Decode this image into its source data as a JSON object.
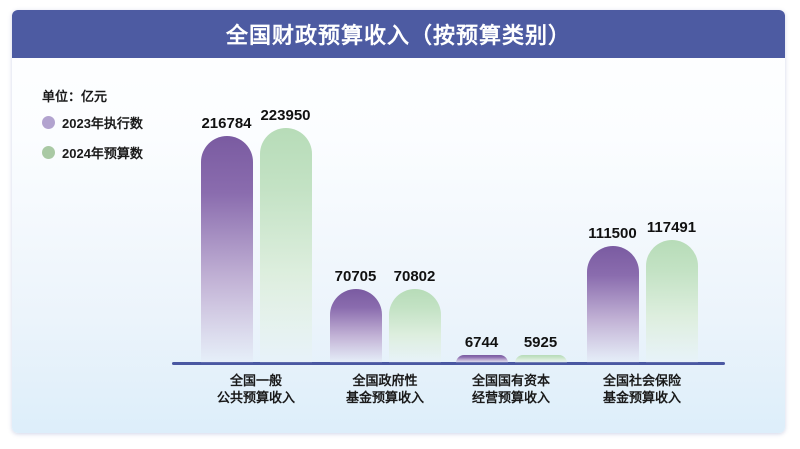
{
  "title": "全国财政预算收入（按预算类别）",
  "unit_label": "单位：亿元",
  "legend": [
    {
      "label": "2023年执行数",
      "color": "#b2a3cf"
    },
    {
      "label": "2024年预算数",
      "color": "#a9c9a4"
    }
  ],
  "colors": {
    "title_bar": "#4d5ba2",
    "axis_line": "#4a58a2",
    "bar_2023_top": "#7a5ba1",
    "bar_2024_top": "#b7dcb8",
    "card_bottom": "#ddeefa"
  },
  "chart_data": {
    "type": "bar",
    "title": "全国财政预算收入（按预算类别）",
    "unit": "亿元",
    "categories": [
      {
        "line1": "全国一般",
        "line2": "公共预算收入"
      },
      {
        "line1": "全国政府性",
        "line2": "基金预算收入"
      },
      {
        "line1": "全国国有资本",
        "line2": "经营预算收入"
      },
      {
        "line1": "全国社会保险",
        "line2": "基金预算收入"
      }
    ],
    "series": [
      {
        "name": "2023年执行数",
        "values": [
          216784,
          70705,
          6744,
          111500
        ]
      },
      {
        "name": "2024年预算数",
        "values": [
          223950,
          70802,
          5925,
          117491
        ]
      }
    ],
    "ylim": [
      0,
      240000
    ],
    "grid": false,
    "legend_position": "top-left",
    "value_labels": true
  }
}
